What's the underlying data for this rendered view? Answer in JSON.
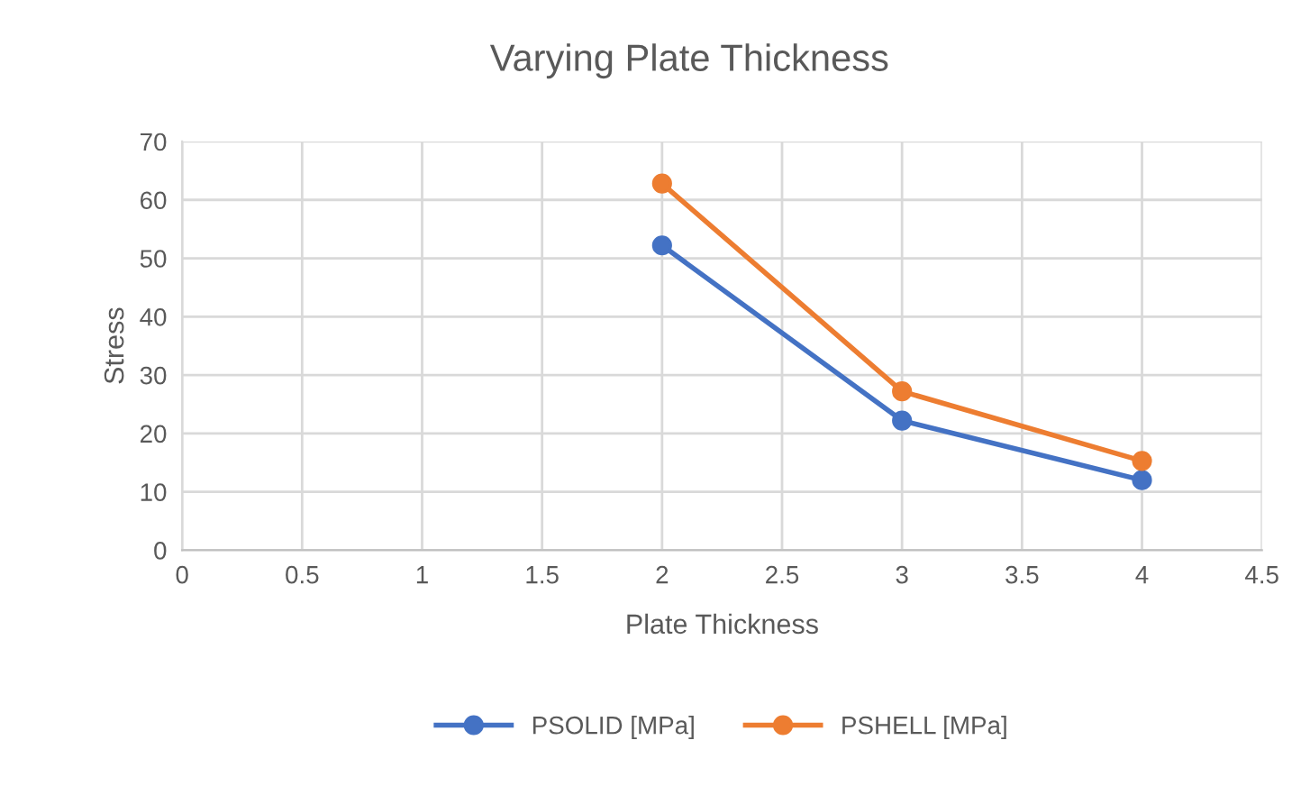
{
  "chart_data": {
    "type": "line",
    "title": "Varying Plate Thickness",
    "xlabel": "Plate Thickness",
    "ylabel": "Stress",
    "x": [
      2,
      3,
      4
    ],
    "series": [
      {
        "name": "PSOLID [MPa]",
        "color": "#4472c4",
        "values": [
          52.2,
          22.2,
          12
        ]
      },
      {
        "name": "PSHELL [MPa]",
        "color": "#ed7d31",
        "values": [
          62.8,
          27.2,
          15.3
        ]
      }
    ],
    "xlim": [
      0,
      4.5
    ],
    "xticks": [
      0,
      0.5,
      1,
      1.5,
      2,
      2.5,
      3,
      3.5,
      4,
      4.5
    ],
    "ylim": [
      0,
      70
    ],
    "yticks": [
      0,
      10,
      20,
      30,
      40,
      50,
      60,
      70
    ],
    "grid": true,
    "legend": "bottom",
    "marker": "circle",
    "line_style": "solid"
  }
}
